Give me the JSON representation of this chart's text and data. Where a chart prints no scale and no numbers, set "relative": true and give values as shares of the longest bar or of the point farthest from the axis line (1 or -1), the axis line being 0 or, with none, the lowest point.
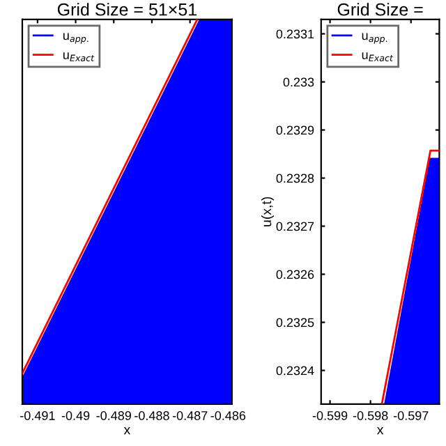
{
  "chart_data": [
    {
      "type": "area",
      "title": "Grid Size = 51×51",
      "xlabel": "x",
      "relative": true,
      "xlim": [
        -0.4914,
        -0.4859
      ],
      "xticks": [
        -0.491,
        -0.49,
        -0.489,
        -0.488,
        -0.487,
        -0.486
      ],
      "legend": "top left",
      "grid": false,
      "series": [
        {
          "name": "u$_{app.}$",
          "color": "#0000ff",
          "x": [
            -0.4914,
            -0.48673,
            -0.4859
          ],
          "values": [
            0.065,
            1,
            1
          ]
        },
        {
          "name": "u$_{Exact}$",
          "color": "#ff0000",
          "type": "line",
          "x": [
            -0.4914,
            -0.48681
          ],
          "values": [
            0.08,
            1
          ]
        }
      ]
    },
    {
      "type": "area",
      "title": "Grid Size =",
      "xlabel": "x",
      "ylabel": "u(x,t)",
      "xlim": [
        -0.59922,
        -0.5963
      ],
      "ylim": [
        0.23233,
        0.23313
      ],
      "xticks": [
        -0.599,
        -0.598,
        -0.597
      ],
      "yticks": [
        0.2324,
        0.2325,
        0.2326,
        0.2327,
        0.2328,
        0.2329,
        0.233,
        0.2331
      ],
      "legend": "top left",
      "grid": false,
      "series": [
        {
          "name": "u$_{app.}$",
          "color": "#0000ff",
          "x": [
            -0.59764,
            -0.59652,
            -0.5963
          ],
          "values": [
            0.23233,
            0.23284,
            0.23284
          ]
        },
        {
          "name": "u$_{Exact}$",
          "color": "#ff0000",
          "type": "line",
          "x": [
            -0.59772,
            -0.59652,
            -0.5963
          ],
          "values": [
            0.23233,
            0.232857,
            0.232857
          ]
        }
      ]
    }
  ]
}
